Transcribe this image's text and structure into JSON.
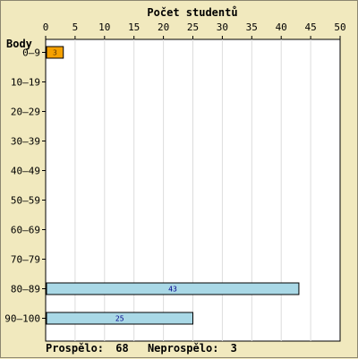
{
  "chart_data": {
    "type": "bar",
    "orientation": "horizontal",
    "title": "Počet studentů",
    "ylabel": "Body",
    "xlabel": "",
    "xlim": [
      0,
      50
    ],
    "x_ticks": [
      0,
      5,
      10,
      15,
      20,
      25,
      30,
      35,
      40,
      45,
      50
    ],
    "categories": [
      "0–9",
      "10–19",
      "20–29",
      "30–39",
      "40–49",
      "50–59",
      "60–69",
      "70–79",
      "80–89",
      "90–100"
    ],
    "values": [
      3,
      0,
      0,
      0,
      0,
      0,
      0,
      0,
      43,
      25
    ],
    "bar_colors": [
      "#f5a100",
      null,
      null,
      null,
      null,
      null,
      null,
      null,
      "#a9d8e6",
      "#a9d8e6"
    ],
    "label_colors": [
      "#5a3300",
      null,
      null,
      null,
      null,
      null,
      null,
      null,
      "#00008b",
      "#00008b"
    ],
    "grid": true,
    "grid_color": "#dcdcdc",
    "plot_background": "#ffffff",
    "summary": {
      "passed_label": "Prospělo:",
      "passed_value": "68",
      "failed_label": "Neprospělo:",
      "failed_value": "3"
    }
  }
}
